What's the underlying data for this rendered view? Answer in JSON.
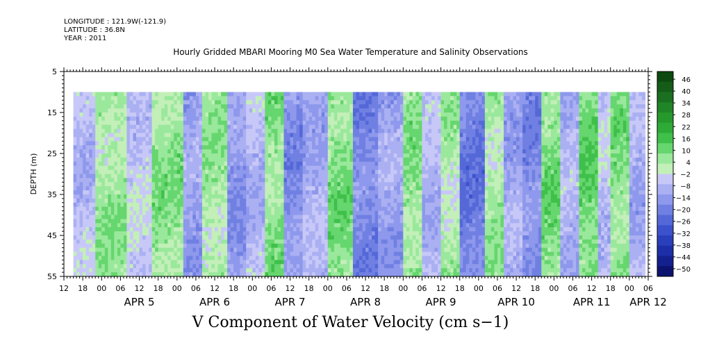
{
  "header": {
    "longitude": "LONGITUDE : 121.9W(-121.9)",
    "latitude": "LATITUDE : 36.8N",
    "year": "YEAR : 2011"
  },
  "chart_data": {
    "type": "heatmap",
    "title": "Hourly Gridded MBARI Mooring M0 Sea Water Temperature and Salinity Observations",
    "xlabel": "V Component of Water Velocity (cm s−1)",
    "ylabel": "DEPTH (m)",
    "x_axis": {
      "unit": "hours since APR 4 12:00",
      "range": [
        0,
        186
      ],
      "hour_ticks": [
        "12",
        "18",
        "00",
        "06",
        "12",
        "18",
        "00",
        "06",
        "12",
        "18",
        "00",
        "06",
        "12",
        "18",
        "00",
        "06",
        "12",
        "18",
        "00",
        "06",
        "12",
        "18",
        "00",
        "06",
        "12",
        "18",
        "00",
        "06",
        "12",
        "18",
        "00",
        "06"
      ],
      "day_labels": [
        {
          "label": "APR  5",
          "hour": 24
        },
        {
          "label": "APR  6",
          "hour": 48
        },
        {
          "label": "APR  7",
          "hour": 72
        },
        {
          "label": "APR  8",
          "hour": 96
        },
        {
          "label": "APR  9",
          "hour": 120
        },
        {
          "label": "APR 10",
          "hour": 144
        },
        {
          "label": "APR 11",
          "hour": 168
        },
        {
          "label": "APR 12",
          "hour": 186
        }
      ]
    },
    "y_axis": {
      "range": [
        5,
        55
      ],
      "inverted": true,
      "ticks": [
        "5",
        "15",
        "25",
        "35",
        "45",
        "55"
      ]
    },
    "data_extent": {
      "hour_start": 3,
      "hour_end": 185,
      "depth_top": 10,
      "depth_bottom": 55
    },
    "colorbar": {
      "levels": [
        "46",
        "40",
        "34",
        "28",
        "22",
        "16",
        "10",
        "4",
        "−2",
        "−8",
        "−14",
        "−20",
        "−26",
        "−32",
        "−38",
        "−44",
        "−50"
      ],
      "colors": [
        "#0d4a10",
        "#155c18",
        "#1a7020",
        "#1f8526",
        "#26992c",
        "#2eab36",
        "#3fc04a",
        "#66d66e",
        "#9ae89c",
        "#c3efb8",
        "#c8c8f8",
        "#aab0f2",
        "#8e98ec",
        "#7080e2",
        "#5468d8",
        "#3c52cc",
        "#2a3fbc",
        "#1d2fa8",
        "#14208e",
        "#0b136e"
      ]
    },
    "series": [
      {
        "profile": "velocity",
        "segments": [
          {
            "from": 3,
            "to": 10,
            "v": -5
          },
          {
            "from": 10,
            "to": 20,
            "v": 7
          },
          {
            "from": 20,
            "to": 28,
            "v": -3
          },
          {
            "from": 28,
            "to": 38,
            "v": 8
          },
          {
            "from": 38,
            "to": 44,
            "v": -10
          },
          {
            "from": 44,
            "to": 52,
            "v": 6
          },
          {
            "from": 52,
            "to": 58,
            "v": -12
          },
          {
            "from": 58,
            "to": 64,
            "v": -6
          },
          {
            "from": 64,
            "to": 70,
            "v": 9
          },
          {
            "from": 70,
            "to": 76,
            "v": -14
          },
          {
            "from": 76,
            "to": 84,
            "v": -8
          },
          {
            "from": 84,
            "to": 92,
            "v": 10
          },
          {
            "from": 92,
            "to": 100,
            "v": -16
          },
          {
            "from": 100,
            "to": 108,
            "v": -10
          },
          {
            "from": 108,
            "to": 114,
            "v": 8
          },
          {
            "from": 114,
            "to": 120,
            "v": -6
          },
          {
            "from": 120,
            "to": 126,
            "v": 5
          },
          {
            "from": 126,
            "to": 134,
            "v": -18
          },
          {
            "from": 134,
            "to": 140,
            "v": 6
          },
          {
            "from": 140,
            "to": 146,
            "v": -9
          },
          {
            "from": 146,
            "to": 152,
            "v": -15
          },
          {
            "from": 152,
            "to": 158,
            "v": 10
          },
          {
            "from": 158,
            "to": 164,
            "v": -7
          },
          {
            "from": 164,
            "to": 170,
            "v": 12
          },
          {
            "from": 170,
            "to": 174,
            "v": -4
          },
          {
            "from": 174,
            "to": 180,
            "v": 9
          },
          {
            "from": 180,
            "to": 185,
            "v": -8
          }
        ]
      }
    ]
  }
}
